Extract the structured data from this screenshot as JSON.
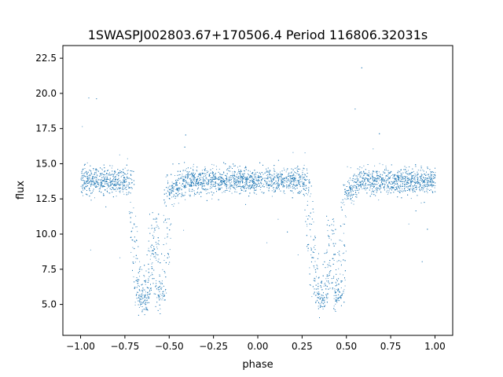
{
  "chart_data": {
    "type": "scatter",
    "title": "1SWASPJ002803.67+170506.4 Period 116806.32031s",
    "xlabel": "phase",
    "ylabel": "flux",
    "xlim": [
      -1.1,
      1.1
    ],
    "ylim": [
      2.8,
      23.4
    ],
    "xticks": [
      -1.0,
      -0.75,
      -0.5,
      -0.25,
      0.0,
      0.25,
      0.5,
      0.75,
      1.0
    ],
    "xtick_labels": [
      "−1.00",
      "−0.75",
      "−0.50",
      "−0.25",
      "0.00",
      "0.25",
      "0.50",
      "0.75",
      "1.00"
    ],
    "yticks": [
      5.0,
      7.5,
      10.0,
      12.5,
      15.0,
      17.5,
      20.0,
      22.5
    ],
    "ytick_labels": [
      "5.0",
      "7.5",
      "10.0",
      "12.5",
      "15.0",
      "17.5",
      "20.0",
      "22.5"
    ],
    "grid": false,
    "legend": "none",
    "marker_color": "#1f77b4",
    "baseline_flux": 13.8,
    "baseline_spread": 0.45,
    "phase_folded": true,
    "dips": [
      {
        "phase": -0.65,
        "min_flux": 5.2,
        "half_width": 0.07
      },
      {
        "phase": -0.55,
        "min_flux": 5.4,
        "half_width": 0.045
      },
      {
        "phase": 0.35,
        "min_flux": 5.2,
        "half_width": 0.07
      },
      {
        "phase": 0.45,
        "min_flux": 5.4,
        "half_width": 0.045
      }
    ],
    "shallow_dips": [
      {
        "phase": -0.5,
        "depth": 0.8,
        "half_width": 0.06
      },
      {
        "phase": 0.5,
        "depth": 0.8,
        "half_width": 0.06
      }
    ],
    "series": [
      {
        "x": [
          -0.98,
          -0.9,
          -0.82,
          -0.78,
          -0.72,
          -0.7,
          -0.68,
          -0.66,
          -0.64,
          -0.62,
          -0.6,
          -0.58,
          -0.56,
          -0.54,
          -0.52,
          -0.5,
          -0.46,
          -0.42,
          -0.35,
          -0.28,
          -0.2,
          -0.1,
          0.0,
          0.1,
          0.2,
          0.22,
          0.28,
          0.3,
          0.32,
          0.34,
          0.36,
          0.38,
          0.4,
          0.42,
          0.44,
          0.46,
          0.48,
          0.5,
          0.55,
          0.6,
          0.7,
          0.8,
          0.9,
          0.98
        ],
        "y": [
          13.8,
          13.9,
          13.9,
          13.5,
          11.2,
          9.0,
          6.8,
          5.6,
          5.3,
          6.2,
          7.6,
          6.3,
          5.5,
          5.8,
          8.0,
          12.8,
          13.7,
          13.8,
          13.9,
          13.8,
          13.8,
          13.8,
          13.9,
          13.8,
          13.9,
          13.5,
          11.1,
          8.9,
          6.7,
          5.5,
          5.3,
          6.4,
          7.8,
          6.2,
          5.5,
          5.9,
          8.2,
          12.8,
          13.7,
          13.8,
          13.9,
          13.8,
          13.9,
          13.9
        ]
      }
    ]
  }
}
